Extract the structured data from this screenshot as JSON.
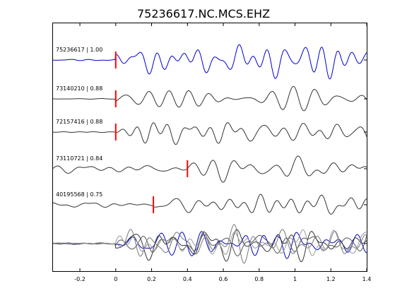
{
  "chart_data": {
    "type": "line",
    "title": "75236617.NC.MCS.EHZ",
    "xlabel": "",
    "ylabel": "",
    "xlim": [
      -0.35,
      1.4
    ],
    "xticks": [
      -0.2,
      0,
      0.2,
      0.4,
      0.6,
      0.8,
      1,
      1.2,
      1.4
    ],
    "xtick_labels": [
      "-0.2",
      "0",
      "0.2",
      "0.4",
      "0.6",
      "0.8",
      "1",
      "1.2",
      "1.4"
    ],
    "grid": false,
    "legend": false,
    "series": [
      {
        "name": "75236617 | 1.00",
        "color": "#0000cc",
        "pick": 0.0,
        "seed": 1,
        "preamp": 0.06,
        "postamp": 1.3
      },
      {
        "name": "73140210 | 0.88",
        "color": "#333333",
        "pick": 0.0,
        "seed": 2,
        "preamp": 0.04,
        "postamp": 1.0
      },
      {
        "name": "72157416 | 0.88",
        "color": "#333333",
        "pick": 0.0,
        "seed": 3,
        "preamp": 0.04,
        "postamp": 1.0
      },
      {
        "name": "73110721 | 0.84",
        "color": "#333333",
        "pick": 0.4,
        "seed": 4,
        "preamp": 0.45,
        "postamp": 1.0
      },
      {
        "name": "40195568 | 0.75",
        "color": "#333333",
        "pick": 0.21,
        "seed": 5,
        "preamp": 0.25,
        "postamp": 1.0
      }
    ],
    "stack": {
      "colors": [
        "#0000cc",
        "#333333",
        "#555555",
        "#777777",
        "#999999"
      ]
    },
    "pick_color": "#ff0000"
  }
}
